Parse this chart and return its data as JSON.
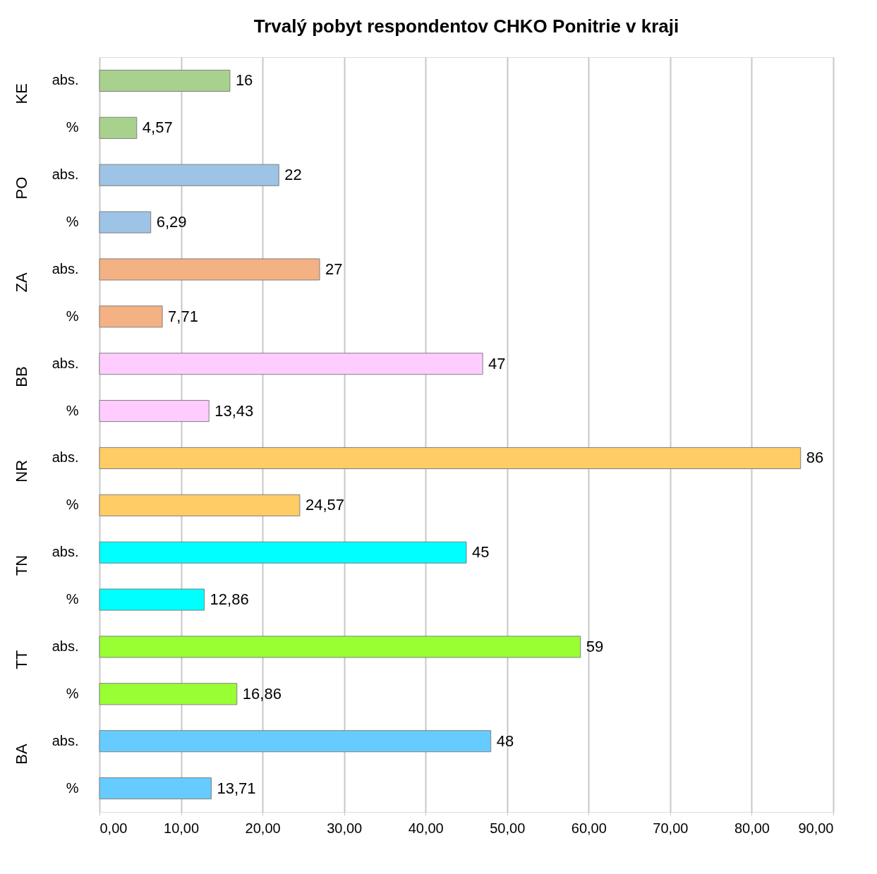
{
  "chart_data": {
    "type": "bar",
    "orientation": "horizontal",
    "title": "Trvalý pobyt respondentov CHKO Ponitrie v kraji",
    "categories": [
      "abs.",
      "%",
      "abs.",
      "%",
      "abs.",
      "%",
      "abs.",
      "%",
      "abs.",
      "%",
      "abs.",
      "%",
      "abs.",
      "%",
      "abs.",
      "%"
    ],
    "annotations": [
      "KE",
      "PO",
      "ZA",
      "BB",
      "NR",
      "TN",
      "TT",
      "BA"
    ],
    "values": [
      16,
      4.57,
      22,
      6.29,
      27,
      7.71,
      47,
      13.43,
      86,
      24.57,
      45,
      12.86,
      59,
      16.86,
      48,
      13.71
    ],
    "value_labels": [
      "16",
      "4,57",
      "22",
      "6,29",
      "27",
      "7,71",
      "47",
      "13,43",
      "86",
      "24,57",
      "45",
      "12,86",
      "59",
      "16,86",
      "48",
      "13,71"
    ],
    "colors": [
      "#a9d18e",
      "#a9d18e",
      "#9dc3e6",
      "#9dc3e6",
      "#f4b183",
      "#f4b183",
      "#ffccff",
      "#ffccff",
      "#ffcc66",
      "#ffcc66",
      "#00ffff",
      "#00ffff",
      "#99ff33",
      "#99ff33",
      "#66ccff",
      "#66ccff"
    ],
    "xlim": [
      0,
      90
    ],
    "xticks": [
      {
        "value": 0,
        "label": "0,00"
      },
      {
        "value": 10,
        "label": "10,00"
      },
      {
        "value": 20,
        "label": "20,00"
      },
      {
        "value": 30,
        "label": "30,00"
      },
      {
        "value": 40,
        "label": "40,00"
      },
      {
        "value": 50,
        "label": "50,00"
      },
      {
        "value": 60,
        "label": "60,00"
      },
      {
        "value": 70,
        "label": "70,00"
      },
      {
        "value": 80,
        "label": "80,00"
      },
      {
        "value": 90,
        "label": "90,00"
      }
    ],
    "grid": "x"
  }
}
